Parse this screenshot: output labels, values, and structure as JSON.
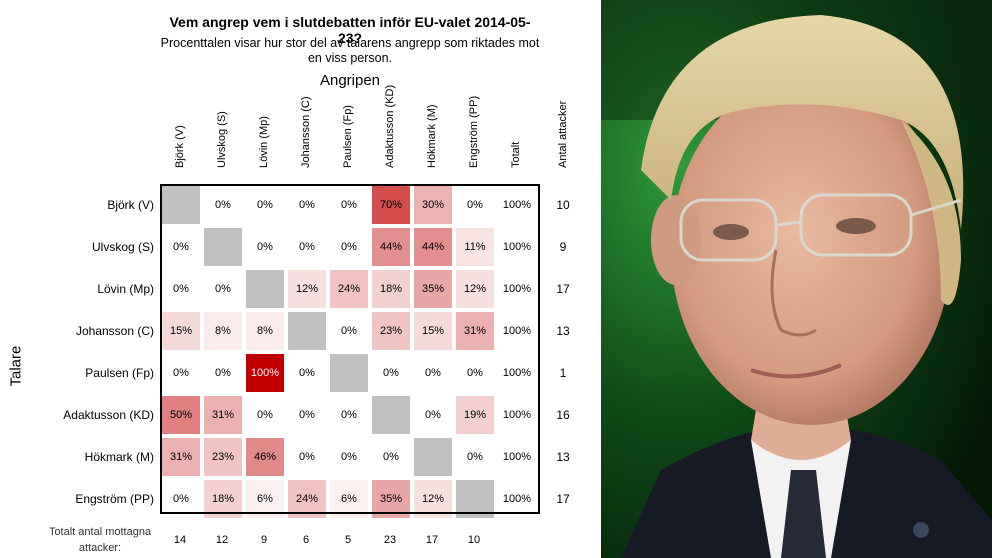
{
  "title": "Vem angrep vem i slutdebatten inför EU-valet 2014-05-23?",
  "subtitle_line1": "Procenttalen visar hur stor del av talarens angrepp som riktades mot",
  "subtitle_line2": "en viss person.",
  "column_axis": "Angripen",
  "row_axis": "Talare",
  "columns": [
    "Björk (V)",
    "Ulvskog (S)",
    "Lövin (Mp)",
    "Johansson (C)",
    "Paulsen (Fp)",
    "Adaktusson (KD)",
    "Hökmark (M)",
    "Engström (PP)",
    "Totalt",
    "Antal attacker"
  ],
  "rows": [
    {
      "label": "Björk (V)",
      "values": [
        null,
        "0%",
        "0%",
        "0%",
        "0%",
        "70%",
        "30%",
        "0%"
      ],
      "total": "100%",
      "antal": "10"
    },
    {
      "label": "Ulvskog (S)",
      "values": [
        "0%",
        null,
        "0%",
        "0%",
        "0%",
        "44%",
        "44%",
        "11%"
      ],
      "total": "100%",
      "antal": "9"
    },
    {
      "label": "Lövin (Mp)",
      "values": [
        "0%",
        "0%",
        null,
        "12%",
        "24%",
        "18%",
        "35%",
        "12%"
      ],
      "total": "100%",
      "antal": "17"
    },
    {
      "label": "Johansson (C)",
      "values": [
        "15%",
        "8%",
        "8%",
        null,
        "0%",
        "23%",
        "15%",
        "31%"
      ],
      "total": "100%",
      "antal": "13"
    },
    {
      "label": "Paulsen (Fp)",
      "values": [
        "0%",
        "0%",
        "100%",
        "0%",
        null,
        "0%",
        "0%",
        "0%"
      ],
      "total": "100%",
      "antal": "1"
    },
    {
      "label": "Adaktusson (KD)",
      "values": [
        "50%",
        "31%",
        "0%",
        "0%",
        "0%",
        null,
        "0%",
        "19%"
      ],
      "total": "100%",
      "antal": "16"
    },
    {
      "label": "Hökmark (M)",
      "values": [
        "31%",
        "23%",
        "46%",
        "0%",
        "0%",
        "0%",
        null,
        "0%"
      ],
      "total": "100%",
      "antal": "13"
    },
    {
      "label": "Engström (PP)",
      "values": [
        "0%",
        "18%",
        "6%",
        "24%",
        "6%",
        "35%",
        "12%",
        null
      ],
      "total": "100%",
      "antal": "17"
    }
  ],
  "footer_label_line1": "Totalt antal mottagna",
  "footer_label_line2": "attacker:",
  "totals": [
    "14",
    "12",
    "9",
    "6",
    "5",
    "23",
    "17",
    "10"
  ],
  "colors": {
    "diagonal": "#c0c0c0",
    "max": "#c00000",
    "base": "#ffffff"
  }
}
